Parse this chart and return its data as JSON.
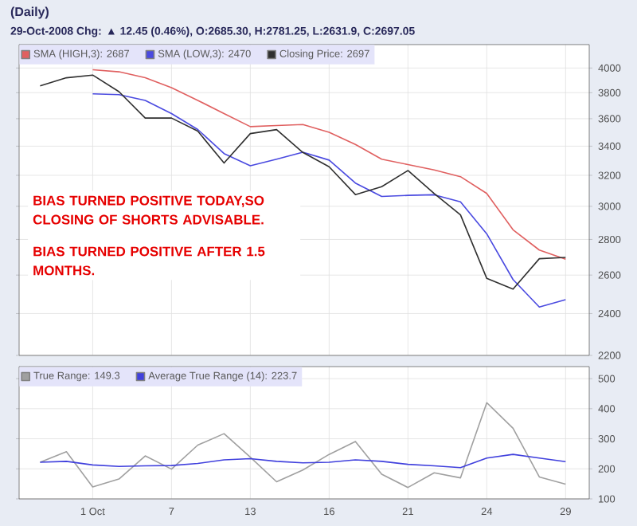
{
  "chart_data": [
    {
      "type": "line",
      "title": "(Daily)",
      "subtitle": "29-Oct-2008 Chg: ▲ 12.45 (0.46%), O:2685.30, H:2781.25, L:2631.9, C:2697.05",
      "categories": [
        null,
        null,
        null,
        null,
        null,
        null,
        null,
        null,
        null,
        null,
        null,
        null,
        null,
        null,
        null,
        null,
        null,
        null,
        null,
        null,
        null
      ],
      "series": [
        {
          "name": "SMA (HIGH,3): 2687",
          "color": "#e06060",
          "values": [
            null,
            null,
            3986,
            3969,
            3920,
            3841,
            3740,
            3639,
            3541,
            3549,
            3557,
            3500,
            3412,
            3309,
            3272,
            3236,
            3191,
            3081,
            2857,
            2739,
            2687
          ]
        },
        {
          "name": "SMA (LOW,3): 2470",
          "color": "#4a4ae0",
          "values": [
            null,
            null,
            3791,
            3785,
            3740,
            3639,
            3520,
            3348,
            3264,
            3309,
            3357,
            3303,
            3149,
            3062,
            3069,
            3073,
            3028,
            2833,
            2576,
            2433,
            2470
          ]
        },
        {
          "name": "Closing Price: 2697",
          "color": "#303030",
          "values": [
            3855,
            3920,
            3942,
            3809,
            3605,
            3605,
            3508,
            3283,
            3490,
            3519,
            3356,
            3257,
            3074,
            3125,
            3232,
            3081,
            2947,
            2582,
            2525,
            2690,
            2697
          ]
        }
      ],
      "log": "y",
      "ylim": [
        2200,
        4200
      ],
      "yticks": [
        2200,
        2400,
        2600,
        2800,
        3000,
        3200,
        3400,
        3600,
        3800,
        4000
      ],
      "grid": true,
      "legend": "top left",
      "tick_labels": "y",
      "annotations": [
        "BIAS TURNED POSITIVE TODAY,SO CLOSING OF SHORTS ADVISABLE.",
        "BIAS TURNED POSITIVE AFTER 1.5 MONTHS."
      ]
    },
    {
      "type": "line",
      "categories": [
        null,
        null,
        "1 Oct",
        null,
        null,
        "7",
        null,
        null,
        "13",
        null,
        null,
        "16",
        null,
        null,
        "21",
        null,
        null,
        "24",
        null,
        null,
        "29"
      ],
      "series": [
        {
          "name": "True Range: 149.3",
          "color": "#a0a0a0",
          "values": [
            222,
            257,
            140,
            166,
            243,
            199,
            279,
            317,
            239,
            157,
            196,
            248,
            291,
            182,
            138,
            187,
            170,
            420,
            335,
            173,
            149.3
          ]
        },
        {
          "name": "Average True Range (14): 223.7",
          "color": "#4040dd",
          "values": [
            222,
            225,
            213,
            208,
            210,
            211,
            218,
            230,
            234,
            225,
            220,
            222,
            230,
            225,
            215,
            210,
            204,
            236,
            248,
            236,
            223.7
          ]
        }
      ],
      "ylim": [
        100,
        540
      ],
      "yticks": [
        100,
        200,
        300,
        400,
        500
      ],
      "grid": true,
      "legend": "top left"
    }
  ]
}
